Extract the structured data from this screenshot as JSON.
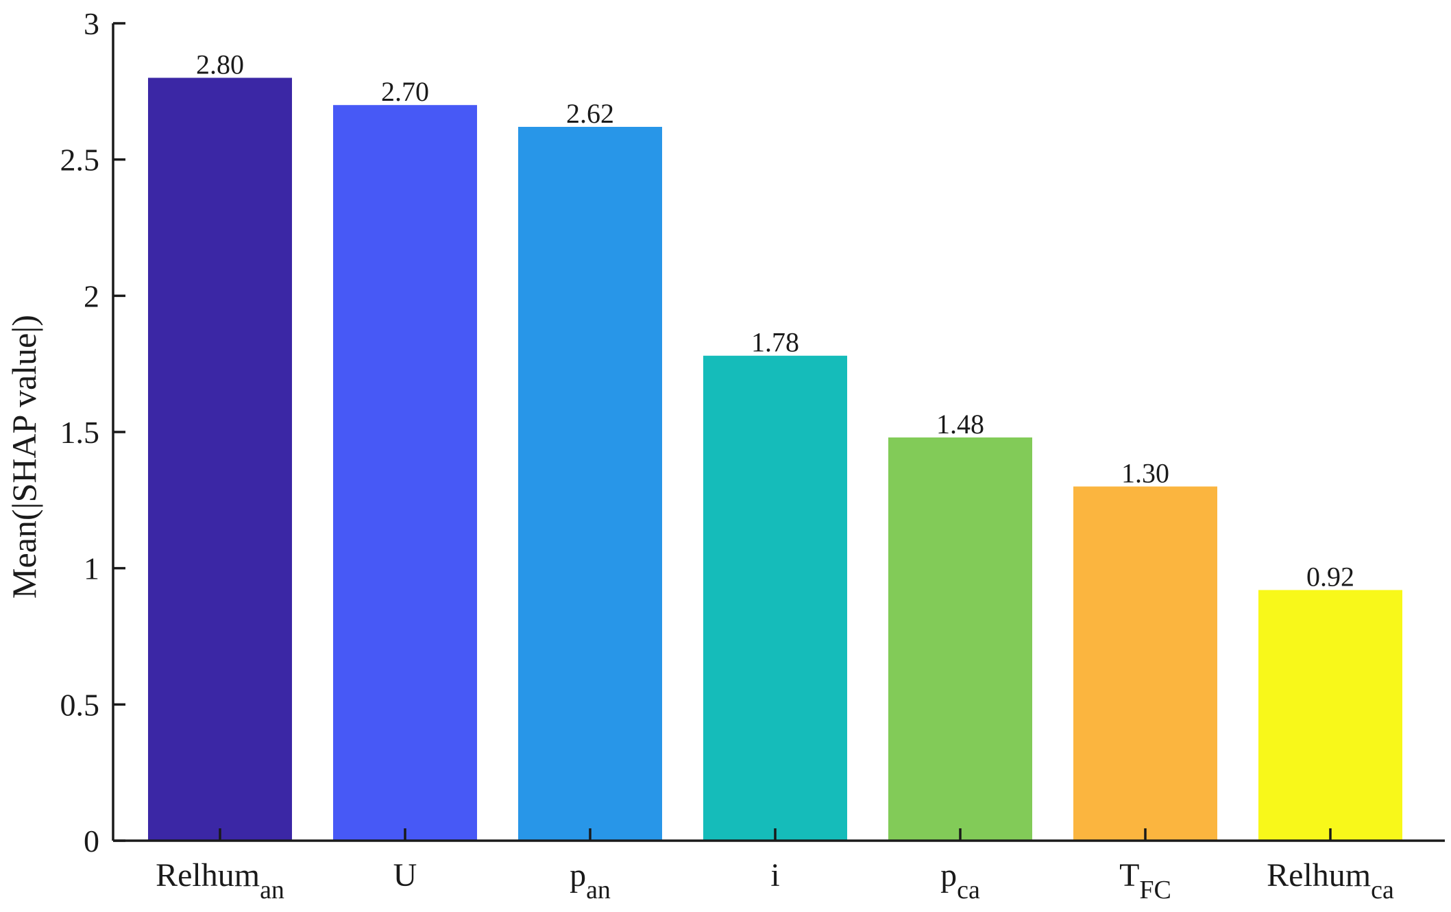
{
  "chart_data": {
    "type": "bar",
    "categories": [
      {
        "base": "Relhum",
        "sub": "an"
      },
      {
        "base": "U",
        "sub": ""
      },
      {
        "base": "p",
        "sub": "an"
      },
      {
        "base": "i",
        "sub": ""
      },
      {
        "base": "p",
        "sub": "ca"
      },
      {
        "base": "T",
        "sub": "FC"
      },
      {
        "base": "Relhum",
        "sub": "ca"
      }
    ],
    "values": [
      2.8,
      2.7,
      2.62,
      1.78,
      1.48,
      1.3,
      0.92
    ],
    "value_labels": [
      "2.80",
      "2.70",
      "2.62",
      "1.78",
      "1.48",
      "1.30",
      "0.92"
    ],
    "colors": [
      "#3b27a5",
      "#4759f6",
      "#2896e8",
      "#15bcba",
      "#82cb58",
      "#fbb53f",
      "#f8f81a"
    ],
    "ylabel": "Mean(|SHAP value|)",
    "ylim": [
      0,
      3
    ],
    "yticks": [
      0,
      0.5,
      1,
      1.5,
      2,
      2.5,
      3
    ],
    "ytick_labels": [
      "0",
      "0.5",
      "1",
      "1.5",
      "2",
      "2.5",
      "3"
    ],
    "grid": false,
    "legend": "none"
  }
}
